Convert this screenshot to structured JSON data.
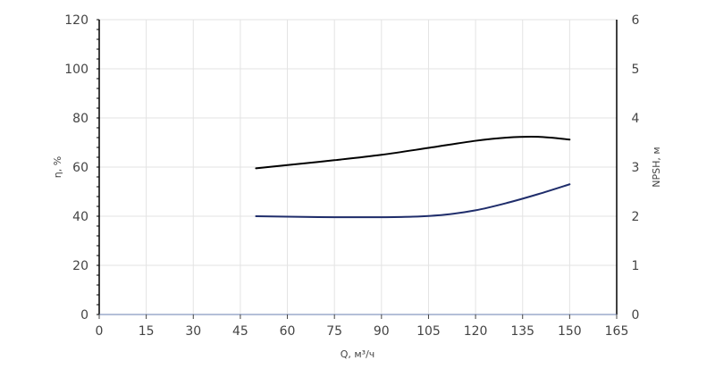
{
  "chart_data": {
    "type": "line",
    "xlabel": "Q, м³/ч",
    "ylabel_left": "η, %",
    "ylabel_right": "NPSH, м",
    "xlim": [
      0,
      165
    ],
    "ylim_left": [
      0,
      120
    ],
    "ylim_right": [
      0,
      6
    ],
    "x_ticks": [
      0,
      15,
      30,
      45,
      60,
      75,
      90,
      105,
      120,
      135,
      150,
      165
    ],
    "y_left_ticks": [
      0,
      20,
      40,
      60,
      80,
      100,
      120
    ],
    "y_right_ticks": [
      0,
      1,
      2,
      3,
      4,
      5,
      6
    ],
    "grid": true,
    "series": [
      {
        "axis": "left",
        "color": "#000000",
        "x": [
          50,
          60,
          75,
          90,
          105,
          120,
          130,
          140,
          150
        ],
        "y": [
          59.5,
          60.8,
          62.8,
          65,
          67.8,
          70.7,
          72,
          72.3,
          71.2
        ]
      },
      {
        "axis": "right",
        "color": "#1f2d6b",
        "x": [
          50,
          60,
          75,
          90,
          100,
          110,
          120,
          130,
          140,
          150
        ],
        "y": [
          2.0,
          1.99,
          1.98,
          1.98,
          1.99,
          2.03,
          2.12,
          2.27,
          2.45,
          2.65
        ]
      }
    ]
  }
}
